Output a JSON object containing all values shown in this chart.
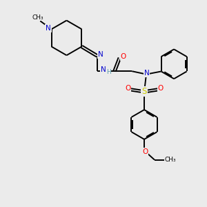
{
  "background_color": "#ebebeb",
  "atom_colors": {
    "C": "#000000",
    "N": "#0000cc",
    "O": "#ff0000",
    "S": "#cccc00",
    "H": "#5599aa"
  },
  "bond_lw": 1.4,
  "ring_r": 0.72
}
